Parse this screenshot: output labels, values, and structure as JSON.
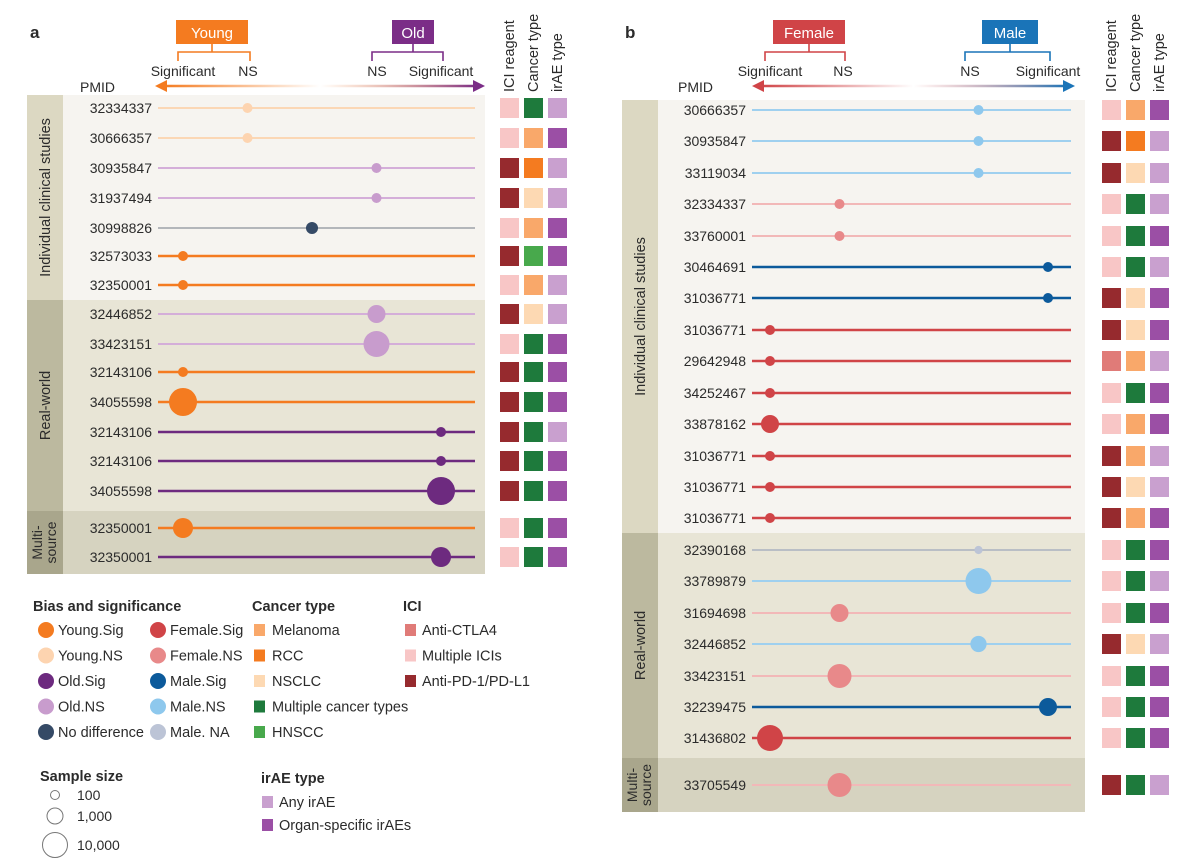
{
  "colors": {
    "bias": {
      "Young.Sig": "#f47b20",
      "Young.NS": "#fdd4b0",
      "Old.Sig": "#6d2a7f",
      "Old.NS": "#c89ccd",
      "No difference": "#354a66",
      "Female.Sig": "#d04447",
      "Female.NS": "#e8898a",
      "Male.Sig": "#0c5a9b",
      "Male.NS": "#8ec8ed",
      "Male. NA": "#bcc4d6"
    },
    "cancer": {
      "Melanoma": "#f9a86a",
      "RCC": "#f47b20",
      "NSCLC": "#fdd9b3",
      "Multiple cancer types": "#1e7a3c",
      "HNSCC": "#48a94c"
    },
    "ici": {
      "Anti-CTLA4": "#e07b78",
      "Multiple ICIs": "#f8c6c6",
      "Anti-PD-1/PD-L1": "#962a2e"
    },
    "irae": {
      "Any irAE": "#c9a0cf",
      "Organ-specific irAEs": "#9b4fa5"
    },
    "young": "#f47b20",
    "old": "#7b2d87",
    "female": "#d04447",
    "male": "#1a74b8"
  },
  "chart_data": [
    {
      "type": "dot-plot",
      "panel_label": "a",
      "left_group": "Young",
      "right_group": "Old",
      "ticks": [
        "Significant",
        "NS",
        "NS",
        "Significant"
      ],
      "row_label_header": "PMID",
      "column_headers": [
        "ICI reagent",
        "Cancer type",
        "irAE type"
      ],
      "groups": [
        {
          "label": "Individual clinical studies",
          "rows": [
            {
              "pmid": "32334337",
              "bias": "Young.NS",
              "sample_size": 100,
              "ici": "Multiple ICIs",
              "cancer": "Multiple cancer types",
              "irae": "Any irAE"
            },
            {
              "pmid": "30666357",
              "bias": "Young.NS",
              "sample_size": 100,
              "ici": "Multiple ICIs",
              "cancer": "Melanoma",
              "irae": "Organ-specific irAEs"
            },
            {
              "pmid": "30935847",
              "bias": "Old.NS",
              "sample_size": 100,
              "ici": "Anti-PD-1/PD-L1",
              "cancer": "RCC",
              "irae": "Any irAE"
            },
            {
              "pmid": "31937494",
              "bias": "Old.NS",
              "sample_size": 100,
              "ici": "Anti-PD-1/PD-L1",
              "cancer": "NSCLC",
              "irae": "Any irAE"
            },
            {
              "pmid": "30998826",
              "bias": "No difference",
              "sample_size": 180,
              "ici": "Multiple ICIs",
              "cancer": "Melanoma",
              "irae": "Organ-specific irAEs"
            },
            {
              "pmid": "32573033",
              "bias": "Young.Sig",
              "sample_size": 100,
              "ici": "Anti-PD-1/PD-L1",
              "cancer": "HNSCC",
              "irae": "Organ-specific irAEs"
            },
            {
              "pmid": "32350001",
              "bias": "Young.Sig",
              "sample_size": 100,
              "ici": "Multiple ICIs",
              "cancer": "Melanoma",
              "irae": "Any irAE"
            }
          ]
        },
        {
          "label": "Real-world",
          "rows": [
            {
              "pmid": "32446852",
              "bias": "Old.NS",
              "sample_size": 1000,
              "ici": "Anti-PD-1/PD-L1",
              "cancer": "NSCLC",
              "irae": "Any irAE"
            },
            {
              "pmid": "33423151",
              "bias": "Old.NS",
              "sample_size": 10000,
              "ici": "Multiple ICIs",
              "cancer": "Multiple cancer types",
              "irae": "Organ-specific irAEs"
            },
            {
              "pmid": "32143106",
              "bias": "Young.Sig",
              "sample_size": 100,
              "ici": "Anti-PD-1/PD-L1",
              "cancer": "Multiple cancer types",
              "irae": "Organ-specific irAEs"
            },
            {
              "pmid": "34055598",
              "bias": "Young.Sig",
              "sample_size": 18000,
              "ici": "Anti-PD-1/PD-L1",
              "cancer": "Multiple cancer types",
              "irae": "Organ-specific irAEs"
            },
            {
              "pmid": "32143106",
              "bias": "Old.Sig",
              "sample_size": 100,
              "ici": "Anti-PD-1/PD-L1",
              "cancer": "Multiple cancer types",
              "irae": "Any irAE"
            },
            {
              "pmid": "32143106",
              "bias": "Old.Sig",
              "sample_size": 100,
              "ici": "Anti-PD-1/PD-L1",
              "cancer": "Multiple cancer types",
              "irae": "Organ-specific irAEs"
            },
            {
              "pmid": "34055598",
              "bias": "Old.Sig",
              "sample_size": 18000,
              "ici": "Anti-PD-1/PD-L1",
              "cancer": "Multiple cancer types",
              "irae": "Organ-specific irAEs"
            }
          ]
        },
        {
          "label": "Multi-source",
          "label_lines": [
            "Multi-",
            "source"
          ],
          "rows": [
            {
              "pmid": "32350001",
              "bias": "Young.Sig",
              "sample_size": 1800,
              "ici": "Multiple ICIs",
              "cancer": "Multiple cancer types",
              "irae": "Organ-specific irAEs"
            },
            {
              "pmid": "32350001",
              "bias": "Old.Sig",
              "sample_size": 1800,
              "ici": "Multiple ICIs",
              "cancer": "Multiple cancer types",
              "irae": "Organ-specific irAEs"
            }
          ]
        }
      ]
    },
    {
      "type": "dot-plot",
      "panel_label": "b",
      "left_group": "Female",
      "right_group": "Male",
      "ticks": [
        "Significant",
        "NS",
        "NS",
        "Significant"
      ],
      "row_label_header": "PMID",
      "column_headers": [
        "ICI reagent",
        "Cancer type",
        "irAE type"
      ],
      "groups": [
        {
          "label": "Individual clinical studies",
          "rows": [
            {
              "pmid": "30666357",
              "bias": "Male.NS",
              "sample_size": 100,
              "ici": "Multiple ICIs",
              "cancer": "Melanoma",
              "irae": "Organ-specific irAEs"
            },
            {
              "pmid": "30935847",
              "bias": "Male.NS",
              "sample_size": 100,
              "ici": "Anti-PD-1/PD-L1",
              "cancer": "RCC",
              "irae": "Any irAE"
            },
            {
              "pmid": "33119034",
              "bias": "Male.NS",
              "sample_size": 100,
              "ici": "Anti-PD-1/PD-L1",
              "cancer": "NSCLC",
              "irae": "Any irAE"
            },
            {
              "pmid": "32334337",
              "bias": "Female.NS",
              "sample_size": 100,
              "ici": "Multiple ICIs",
              "cancer": "Multiple cancer types",
              "irae": "Any irAE"
            },
            {
              "pmid": "33760001",
              "bias": "Female.NS",
              "sample_size": 100,
              "ici": "Multiple ICIs",
              "cancer": "Multiple cancer types",
              "irae": "Organ-specific irAEs"
            },
            {
              "pmid": "30464691",
              "bias": "Male.Sig",
              "sample_size": 100,
              "ici": "Multiple ICIs",
              "cancer": "Multiple cancer types",
              "irae": "Any irAE"
            },
            {
              "pmid": "31036771",
              "bias": "Male.Sig",
              "sample_size": 100,
              "ici": "Anti-PD-1/PD-L1",
              "cancer": "NSCLC",
              "irae": "Organ-specific irAEs"
            },
            {
              "pmid": "31036771",
              "bias": "Female.Sig",
              "sample_size": 100,
              "ici": "Anti-PD-1/PD-L1",
              "cancer": "NSCLC",
              "irae": "Organ-specific irAEs"
            },
            {
              "pmid": "29642948",
              "bias": "Female.Sig",
              "sample_size": 100,
              "ici": "Anti-CTLA4",
              "cancer": "Melanoma",
              "irae": "Any irAE"
            },
            {
              "pmid": "34252467",
              "bias": "Female.Sig",
              "sample_size": 100,
              "ici": "Multiple ICIs",
              "cancer": "Multiple cancer types",
              "irae": "Organ-specific irAEs"
            },
            {
              "pmid": "33878162",
              "bias": "Female.Sig",
              "sample_size": 1000,
              "ici": "Multiple ICIs",
              "cancer": "Melanoma",
              "irae": "Organ-specific irAEs"
            },
            {
              "pmid": "31036771",
              "bias": "Female.Sig",
              "sample_size": 100,
              "ici": "Anti-PD-1/PD-L1",
              "cancer": "Melanoma",
              "irae": "Any irAE"
            },
            {
              "pmid": "31036771",
              "bias": "Female.Sig",
              "sample_size": 100,
              "ici": "Anti-PD-1/PD-L1",
              "cancer": "NSCLC",
              "irae": "Any irAE"
            },
            {
              "pmid": "31036771",
              "bias": "Female.Sig",
              "sample_size": 100,
              "ici": "Anti-PD-1/PD-L1",
              "cancer": "Melanoma",
              "irae": "Organ-specific irAEs"
            }
          ]
        },
        {
          "label": "Real-world",
          "rows": [
            {
              "pmid": "32390168",
              "bias": "Male. NA",
              "sample_size": 60,
              "ici": "Multiple ICIs",
              "cancer": "Multiple cancer types",
              "irae": "Organ-specific irAEs"
            },
            {
              "pmid": "33789879",
              "bias": "Male.NS",
              "sample_size": 10000,
              "ici": "Multiple ICIs",
              "cancer": "Multiple cancer types",
              "irae": "Any irAE"
            },
            {
              "pmid": "31694698",
              "bias": "Female.NS",
              "sample_size": 1000,
              "ici": "Multiple ICIs",
              "cancer": "Multiple cancer types",
              "irae": "Organ-specific irAEs"
            },
            {
              "pmid": "32446852",
              "bias": "Male.NS",
              "sample_size": 600,
              "ici": "Anti-PD-1/PD-L1",
              "cancer": "NSCLC",
              "irae": "Any irAE"
            },
            {
              "pmid": "33423151",
              "bias": "Female.NS",
              "sample_size": 5600,
              "ici": "Multiple ICIs",
              "cancer": "Multiple cancer types",
              "irae": "Organ-specific irAEs"
            },
            {
              "pmid": "32239475",
              "bias": "Male.Sig",
              "sample_size": 1000,
              "ici": "Multiple ICIs",
              "cancer": "Multiple cancer types",
              "irae": "Organ-specific irAEs"
            },
            {
              "pmid": "31436802",
              "bias": "Female.Sig",
              "sample_size": 10000,
              "ici": "Multiple ICIs",
              "cancer": "Multiple cancer types",
              "irae": "Organ-specific irAEs"
            }
          ]
        },
        {
          "label": "Multi-source",
          "label_lines": [
            "Multi-",
            "source"
          ],
          "rows": [
            {
              "pmid": "33705549",
              "bias": "Female.NS",
              "sample_size": 5600,
              "ici": "Anti-PD-1/PD-L1",
              "cancer": "Multiple cancer types",
              "irae": "Any irAE"
            }
          ]
        }
      ]
    }
  ],
  "legend": {
    "bias_title": "Bias and significance",
    "bias_items": [
      "Young.Sig",
      "Young.NS",
      "Old.Sig",
      "Old.NS",
      "No difference",
      "Female.Sig",
      "Female.NS",
      "Male.Sig",
      "Male.NS",
      "Male. NA"
    ],
    "cancer_title": "Cancer type",
    "cancer_items": [
      "Melanoma",
      "RCC",
      "NSCLC",
      "Multiple cancer types",
      "HNSCC"
    ],
    "ici_title": "ICI",
    "ici_items": [
      "Anti-CTLA4",
      "Multiple  ICIs",
      "Anti-PD-1/PD-L1"
    ],
    "ici_keys": [
      "Anti-CTLA4",
      "Multiple ICIs",
      "Anti-PD-1/PD-L1"
    ],
    "size_title": "Sample size",
    "size_items": [
      "100",
      "1,000",
      "10,000"
    ],
    "size_values": [
      100,
      1000,
      10000
    ],
    "irae_title": "irAE type",
    "irae_items": [
      "Any irAE",
      "Organ-specific irAEs"
    ]
  }
}
